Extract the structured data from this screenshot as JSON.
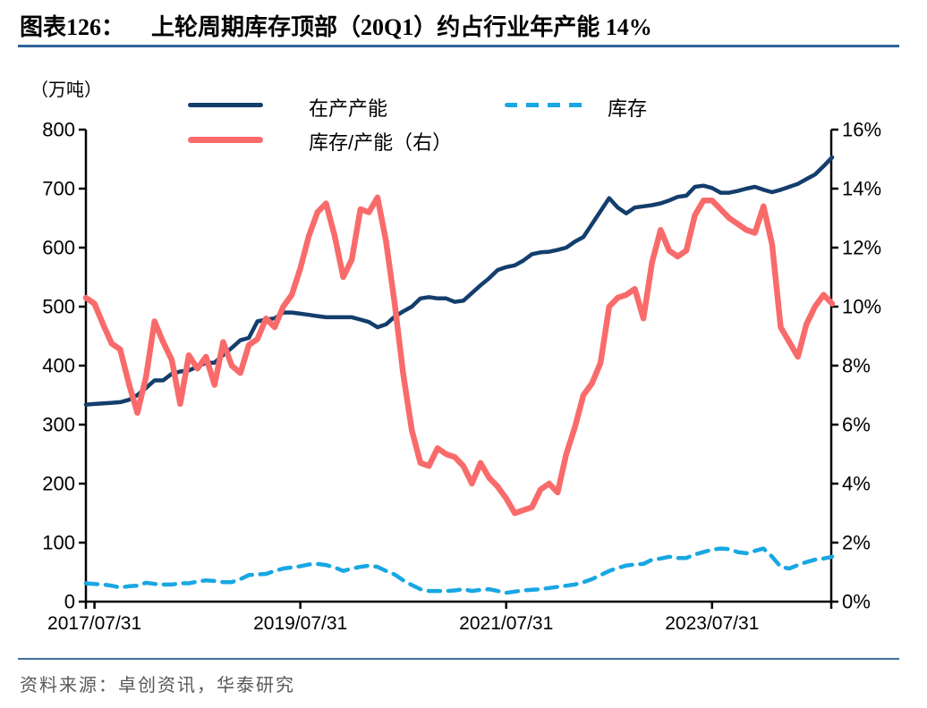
{
  "header": {
    "tag": "图表126：",
    "title": "上轮周期库存顶部（20Q1）约占行业年产能 14%"
  },
  "unit_label": "（万吨）",
  "legend": [
    {
      "label": "在产产能",
      "color": "#133e6c",
      "style": "solid"
    },
    {
      "label": "库存",
      "color": "#18a7e3",
      "style": "dashed"
    },
    {
      "label": "库存/产能（右）",
      "color": "#f96b6b",
      "style": "solid"
    }
  ],
  "footer": {
    "source": "资料来源：卓创资讯，华泰研究"
  },
  "chart_data": {
    "type": "line",
    "title": "上轮周期库存顶部（20Q1）约占行业年产能 14%",
    "x_start": "2017/06/30",
    "x_interval": "monthly",
    "x_tick_labels": [
      "2017/07/31",
      "2019/07/31",
      "2021/07/31",
      "2023/07/31"
    ],
    "x_tick_indices": [
      1,
      25,
      49,
      73
    ],
    "grid": false,
    "legend_position": "top",
    "y_left": {
      "unit": "万吨",
      "min": 0,
      "max": 800,
      "ticks": [
        0,
        100,
        200,
        300,
        400,
        500,
        600,
        700,
        800
      ]
    },
    "y_right": {
      "unit": "%",
      "min": 0,
      "max": 16,
      "ticks": [
        0,
        2,
        4,
        6,
        8,
        10,
        12,
        14,
        16
      ],
      "tick_labels": [
        "0%",
        "2%",
        "4%",
        "6%",
        "8%",
        "10%",
        "12%",
        "14%",
        "16%"
      ]
    },
    "series": [
      {
        "id": "capacity",
        "name": "在产产能",
        "axis": "left",
        "color": "#133e6c",
        "width": 4.5,
        "dash": null,
        "values": [
          334,
          335,
          336,
          337,
          338,
          342,
          350,
          362,
          375,
          375,
          386,
          390,
          392,
          398,
          405,
          405,
          418,
          430,
          443,
          447,
          475,
          478,
          480,
          490,
          490,
          488,
          486,
          484,
          482,
          482,
          482,
          482,
          478,
          474,
          465,
          470,
          483,
          492,
          500,
          514,
          516,
          514,
          514,
          508,
          510,
          523,
          536,
          548,
          562,
          567,
          570,
          578,
          589,
          592,
          593,
          596,
          600,
          610,
          618,
          640,
          662,
          684,
          668,
          658,
          668,
          670,
          672,
          675,
          680,
          686,
          688,
          703,
          705,
          701,
          693,
          693,
          696,
          700,
          703,
          698,
          694,
          698,
          703,
          708,
          716,
          724,
          738,
          753
        ]
      },
      {
        "id": "inventory",
        "name": "库存",
        "axis": "left",
        "color": "#18a7e3",
        "width": 4.5,
        "dash": "13,9",
        "values": [
          31,
          30,
          29,
          27,
          24,
          26,
          27,
          32,
          30,
          29,
          29,
          31,
          31,
          34,
          36,
          35,
          33,
          33,
          38,
          45,
          46,
          47,
          52,
          56,
          58,
          60,
          63,
          64,
          62,
          58,
          52,
          56,
          59,
          61,
          59,
          52,
          46,
          36,
          28,
          21,
          18,
          18,
          18,
          19,
          21,
          18,
          20,
          21,
          18,
          15,
          17,
          19,
          20,
          21,
          23,
          25,
          27,
          29,
          33,
          38,
          45,
          52,
          57,
          61,
          63,
          64,
          71,
          73,
          76,
          74,
          74,
          80,
          84,
          88,
          90,
          89,
          84,
          82,
          86,
          90,
          76,
          59,
          56,
          62,
          67,
          71,
          73,
          76
        ]
      },
      {
        "id": "inventory-capacity-ratio",
        "name": "库存/产能（右）",
        "axis": "right",
        "color": "#f96b6b",
        "width": 6.5,
        "dash": null,
        "values": [
          10.3,
          10.1,
          9.4,
          8.75,
          8.55,
          7.4,
          6.4,
          7.6,
          9.5,
          8.8,
          8.2,
          6.7,
          8.35,
          7.9,
          8.3,
          7.35,
          8.8,
          8.0,
          7.75,
          8.7,
          8.9,
          9.6,
          9.3,
          10.0,
          10.4,
          11.3,
          12.4,
          13.2,
          13.5,
          12.4,
          11.0,
          11.6,
          13.3,
          13.2,
          13.7,
          12.2,
          10.1,
          7.7,
          5.8,
          4.7,
          4.6,
          5.2,
          5.0,
          4.9,
          4.6,
          4.0,
          4.7,
          4.2,
          3.9,
          3.5,
          3.0,
          3.1,
          3.2,
          3.8,
          4.0,
          3.7,
          5.0,
          5.9,
          7.0,
          7.4,
          8.1,
          10.0,
          10.3,
          10.4,
          10.6,
          9.6,
          11.5,
          12.6,
          11.9,
          11.7,
          11.9,
          13.1,
          13.6,
          13.6,
          13.3,
          13.0,
          12.8,
          12.6,
          12.5,
          13.4,
          12.1,
          9.3,
          8.8,
          8.3,
          9.4,
          10.0,
          10.4,
          10.1
        ]
      }
    ]
  }
}
